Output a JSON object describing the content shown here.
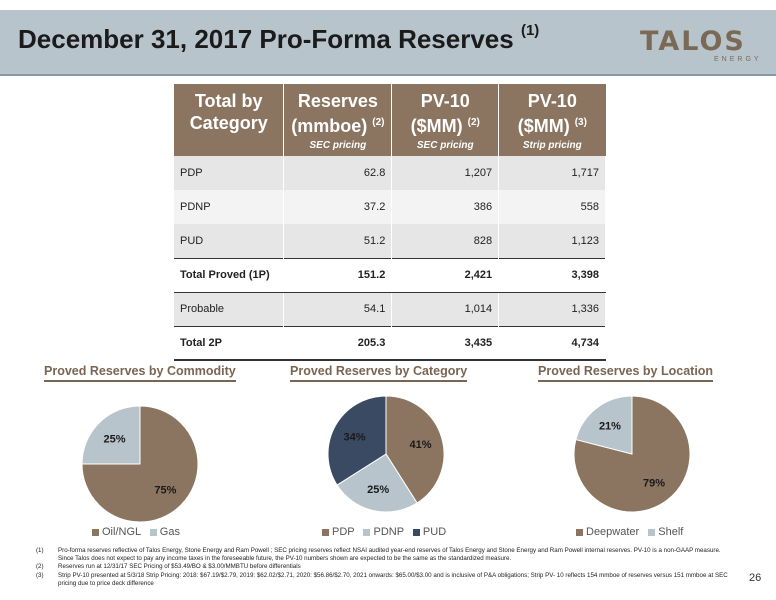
{
  "header": {
    "title": "December 31, 2017 Pro-Forma Reserves",
    "title_sup": "(1)",
    "logo_text": "TALOS",
    "logo_sub": "ENERGY"
  },
  "table": {
    "headers": [
      {
        "main": "Total by Category",
        "sup": "",
        "sub": ""
      },
      {
        "main": "Reserves (mmboe)",
        "sup": "(2)",
        "sub": "SEC pricing"
      },
      {
        "main": "PV-10 ($MM)",
        "sup": "(2)",
        "sub": "SEC pricing"
      },
      {
        "main": "PV-10 ($MM)",
        "sup": "(3)",
        "sub": "Strip pricing"
      }
    ],
    "rows": [
      {
        "label": "PDP",
        "reserves": "62.8",
        "pv10_sec": "1,207",
        "pv10_strip": "1,717"
      },
      {
        "label": "PDNP",
        "reserves": "37.2",
        "pv10_sec": "386",
        "pv10_strip": "558"
      },
      {
        "label": "PUD",
        "reserves": "51.2",
        "pv10_sec": "828",
        "pv10_strip": "1,123"
      },
      {
        "label": "Total Proved (1P)",
        "reserves": "151.2",
        "pv10_sec": "2,421",
        "pv10_strip": "3,398"
      },
      {
        "label": "Probable",
        "reserves": "54.1",
        "pv10_sec": "1,014",
        "pv10_strip": "1,336"
      },
      {
        "label": "Total 2P",
        "reserves": "205.3",
        "pv10_sec": "3,435",
        "pv10_strip": "4,734"
      }
    ]
  },
  "chart_data": [
    {
      "type": "pie",
      "title": "Proved Reserves by Commodity",
      "categories": [
        "Oil/NGL",
        "Gas"
      ],
      "values": [
        75,
        25
      ],
      "labels": [
        "75%",
        "25%"
      ],
      "colors": [
        "#8b7560",
        "#b8c4cc"
      ]
    },
    {
      "type": "pie",
      "title": "Proved Reserves by Category",
      "categories": [
        "PDP",
        "PDNP",
        "PUD"
      ],
      "values": [
        41,
        25,
        34
      ],
      "labels": [
        "41%",
        "25%",
        "34%"
      ],
      "colors": [
        "#8b7560",
        "#b8c4cc",
        "#3b4a63"
      ]
    },
    {
      "type": "pie",
      "title": "Proved Reserves by Location",
      "categories": [
        "Deepwater",
        "Shelf"
      ],
      "values": [
        79,
        21
      ],
      "labels": [
        "79%",
        "21%"
      ],
      "colors": [
        "#8b7560",
        "#b8c4cc"
      ]
    }
  ],
  "footnotes": [
    {
      "num": "(1)",
      "text": "Pro-forma reserves reflective of Talos Energy, Stone Energy and Ram Powell ; SEC pricing reserves reflect NSAI audited year-end reserves of Talos Energy and Stone Energy and Ram Powell internal reserves. PV-10 is a non-GAAP measure. Since Talos does not expect to pay any income taxes in the foreseeable future, the PV-10 numbers shown are expected to be the same as the standardized measure."
    },
    {
      "num": "(2)",
      "text": "Reserves run at 12/31/17 SEC Pricing of $53.49/BO & $3.00/MMBTU before differentials"
    },
    {
      "num": "(3)",
      "text": "Strip PV-10 presented at 5/3/18 Strip Pricing: 2018: $67.19/$2.79, 2019: $62.02/$2.71, 2020: $56.86/$2.70, 2021 onwards: $65.00/$3.00 and is inclusive of P&A obligations; Strip PV- 10 reflects 154 mmboe of reserves versus 151 mmboe at SEC pricing due to price deck difference"
    }
  ],
  "page_number": "26"
}
